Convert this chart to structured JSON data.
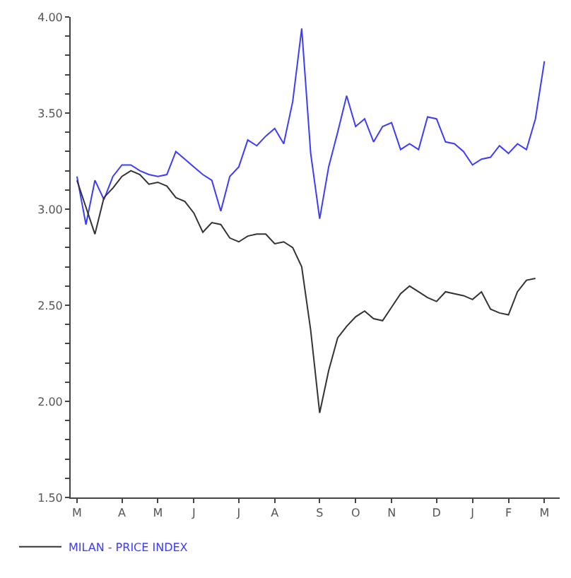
{
  "chart_data": {
    "type": "line",
    "ylim": [
      1.5,
      4.0
    ],
    "categories": [
      "M",
      null,
      null,
      null,
      null,
      "A",
      null,
      null,
      null,
      "M",
      null,
      null,
      null,
      "J",
      null,
      null,
      null,
      null,
      "J",
      null,
      null,
      null,
      "A",
      null,
      null,
      null,
      null,
      "S",
      null,
      null,
      null,
      "O",
      null,
      null,
      null,
      "N",
      null,
      null,
      null,
      null,
      "D",
      null,
      null,
      null,
      "J",
      null,
      null,
      null,
      "F",
      null,
      null,
      null,
      "M",
      null
    ],
    "yticks": [
      {
        "value": 1.5,
        "label": "1.50"
      },
      {
        "value": 1.6,
        "label": null
      },
      {
        "value": 1.7,
        "label": null
      },
      {
        "value": 1.8,
        "label": null
      },
      {
        "value": 1.9,
        "label": null
      },
      {
        "value": 2.0,
        "label": "2.00"
      },
      {
        "value": 2.1,
        "label": null
      },
      {
        "value": 2.2,
        "label": null
      },
      {
        "value": 2.3,
        "label": null
      },
      {
        "value": 2.4,
        "label": null
      },
      {
        "value": 2.5,
        "label": "2.50"
      },
      {
        "value": 2.6,
        "label": null
      },
      {
        "value": 2.7,
        "label": null
      },
      {
        "value": 2.8,
        "label": null
      },
      {
        "value": 2.9,
        "label": null
      },
      {
        "value": 3.0,
        "label": "3.00"
      },
      {
        "value": 3.1,
        "label": null
      },
      {
        "value": 3.2,
        "label": null
      },
      {
        "value": 3.3,
        "label": null
      },
      {
        "value": 3.4,
        "label": null
      },
      {
        "value": 3.5,
        "label": "3.50"
      },
      {
        "value": 3.6,
        "label": null
      },
      {
        "value": 3.7,
        "label": null
      },
      {
        "value": 3.8,
        "label": null
      },
      {
        "value": 3.9,
        "label": null
      },
      {
        "value": 4.0,
        "label": "4.00"
      }
    ],
    "legend": "bottom left",
    "marker": "none",
    "line_style": "solid",
    "series": [
      {
        "color": "#3c3cff",
        "values": [
          3.17,
          2.92,
          3.15,
          3.05,
          3.17,
          3.23,
          3.23,
          3.2,
          3.18,
          3.17,
          3.18,
          3.3,
          3.26,
          3.22,
          3.18,
          3.15,
          2.99,
          3.17,
          3.22,
          3.36,
          3.33,
          3.38,
          3.42,
          3.34,
          3.56,
          3.94,
          3.29,
          2.95,
          3.22,
          3.4,
          3.59,
          3.43,
          3.47,
          3.35,
          3.43,
          3.45,
          3.31,
          3.34,
          3.31,
          3.48,
          3.47,
          3.35,
          3.34,
          3.3,
          3.23,
          3.26,
          3.27,
          3.33,
          3.29,
          3.34,
          3.31,
          3.47,
          3.77,
          null
        ]
      },
      {
        "name": "MILAN - PRICE INDEX",
        "color": "#333333",
        "values": [
          3.15,
          3.01,
          2.87,
          3.06,
          3.11,
          3.17,
          3.2,
          3.18,
          3.13,
          3.14,
          3.12,
          3.06,
          3.04,
          2.98,
          2.88,
          2.93,
          2.92,
          2.85,
          2.83,
          2.86,
          2.87,
          2.87,
          2.82,
          2.83,
          2.8,
          2.7,
          2.37,
          1.94,
          2.16,
          2.33,
          2.39,
          2.44,
          2.47,
          2.43,
          2.42,
          2.49,
          2.56,
          2.6,
          2.57,
          2.54,
          2.52,
          2.57,
          2.56,
          2.55,
          2.53,
          2.57,
          2.48,
          2.46,
          2.45,
          2.57,
          2.63,
          2.64,
          null,
          null
        ]
      }
    ]
  }
}
